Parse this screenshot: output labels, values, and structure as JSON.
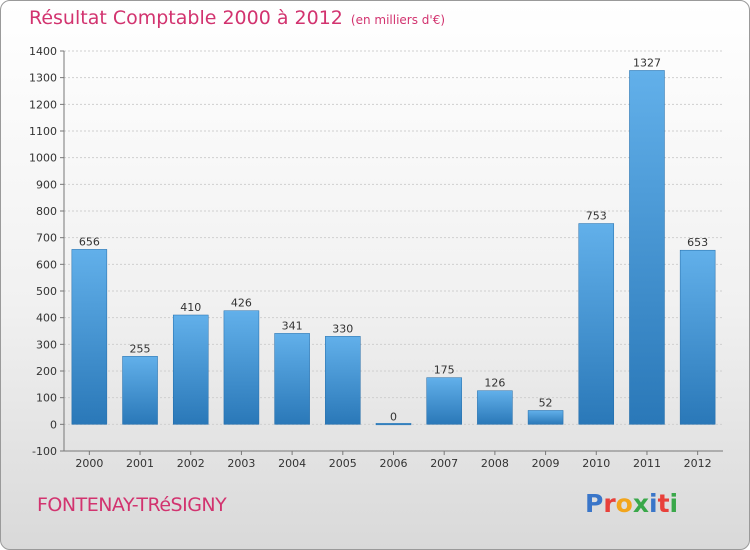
{
  "header": {
    "title": "Résultat Comptable 2000 à 2012",
    "unit": "(en milliers d'€)"
  },
  "footer": {
    "city": "FONTENAY-TRéSIGNY",
    "logo": "Proxiti",
    "logo_colors": [
      "#3a76c9",
      "#e8403a",
      "#f2a51c",
      "#3aa84a",
      "#3a76c9",
      "#e8403a",
      "#3aa84a"
    ]
  },
  "colors": {
    "bar_light": "#62b0ea",
    "bar_dark": "#2a78b8",
    "title": "#d2336f",
    "grid": "#cfcfcf"
  },
  "chart_data": {
    "type": "bar",
    "title": "Résultat Comptable 2000 à 2012",
    "ylabel": "",
    "xlabel": "",
    "categories": [
      "2000",
      "2001",
      "2002",
      "2003",
      "2004",
      "2005",
      "2006",
      "2007",
      "2008",
      "2009",
      "2010",
      "2011",
      "2012"
    ],
    "values": [
      656,
      255,
      410,
      426,
      341,
      330,
      0,
      175,
      126,
      52,
      753,
      1327,
      653
    ],
    "ylim": [
      -100,
      1400
    ],
    "yticks": [
      -100,
      0,
      100,
      200,
      300,
      400,
      500,
      600,
      700,
      800,
      900,
      1000,
      1100,
      1200,
      1300,
      1400
    ],
    "grid": true,
    "legend": "none"
  }
}
